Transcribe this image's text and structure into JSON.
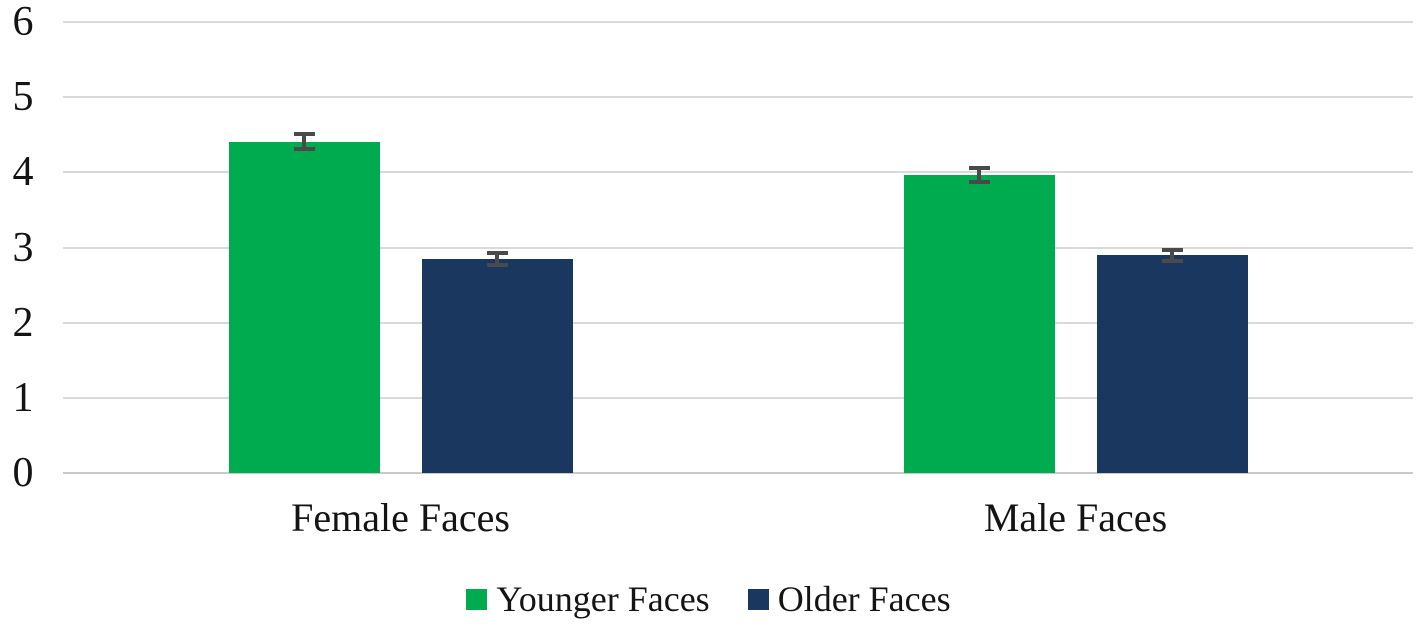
{
  "chart_data": {
    "type": "bar",
    "title": "",
    "xlabel": "",
    "ylabel": "",
    "categories": [
      "Female Faces",
      "Male Faces"
    ],
    "series": [
      {
        "name": "Younger Faces",
        "color": "#00ab4f",
        "values": [
          4.41,
          3.97
        ],
        "errors": [
          0.13,
          0.12
        ]
      },
      {
        "name": "Older Faces",
        "color": "#19375f",
        "values": [
          2.85,
          2.9
        ],
        "errors": [
          0.11,
          0.1
        ]
      }
    ],
    "ylim": [
      0,
      6
    ],
    "yticks": [
      0,
      1,
      2,
      3,
      4,
      5,
      6
    ],
    "grid": true,
    "legend_position": "bottom",
    "colors": {
      "gridline": "#d9d9d9",
      "baseline": "#c9c9c9",
      "error_bar": "#4a4a4a",
      "text": "#141414",
      "background": "#ffffff"
    }
  }
}
